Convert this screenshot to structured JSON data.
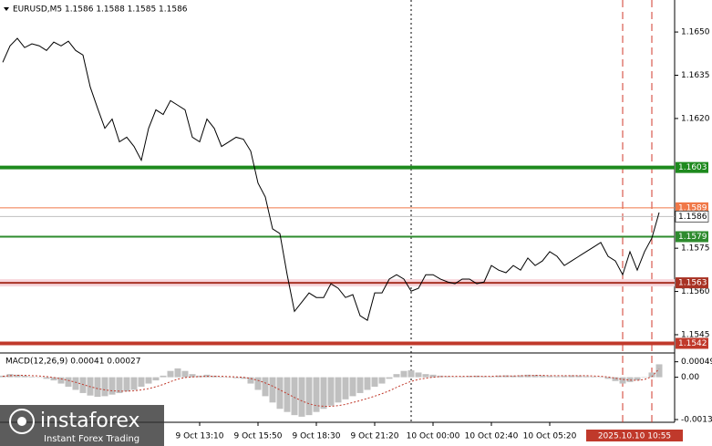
{
  "chart_data": [
    {
      "type": "line",
      "title": "EURUSD,M5 1.1586 1.1588 1.1585 1.1586",
      "color": "#000000",
      "categories": [
        null,
        null,
        null,
        null,
        null,
        null,
        null,
        null,
        null,
        null,
        null,
        null,
        null,
        null,
        null,
        null,
        null,
        null,
        null,
        null,
        null,
        null,
        null,
        null,
        null,
        null,
        null,
        "9 Oct 13:10",
        null,
        null,
        null,
        null,
        null,
        null,
        null,
        "9 Oct 15:50",
        null,
        null,
        null,
        null,
        null,
        null,
        null,
        "9 Oct 18:30",
        null,
        null,
        null,
        null,
        null,
        null,
        null,
        "9 Oct 21:20",
        null,
        null,
        null,
        null,
        null,
        null,
        null,
        "10 Oct 00:00",
        null,
        null,
        null,
        null,
        null,
        null,
        null,
        "10 Oct 02:40",
        null,
        null,
        null,
        null,
        null,
        null,
        null,
        "10 Oct 05:20",
        null,
        null,
        null,
        null,
        null,
        null,
        null,
        null,
        null,
        "2025.10.10 10:55",
        null,
        null,
        null,
        null,
        null
      ],
      "values": [
        1.16395,
        1.16452,
        1.16478,
        1.16446,
        1.16459,
        1.16452,
        1.16436,
        1.16465,
        1.16452,
        1.16468,
        1.16436,
        1.1642,
        1.16309,
        1.16236,
        1.16166,
        1.16198,
        1.16119,
        1.16135,
        1.16103,
        1.16055,
        1.16166,
        1.1623,
        1.16214,
        1.16262,
        1.16246,
        1.1623,
        1.16135,
        1.16119,
        1.16198,
        1.16166,
        1.16103,
        1.16119,
        1.16135,
        1.16128,
        1.16087,
        1.15976,
        1.15928,
        1.15817,
        1.15801,
        1.15658,
        1.15531,
        1.15563,
        1.15595,
        1.15579,
        1.15579,
        1.15627,
        1.15611,
        1.15579,
        1.15589,
        1.15516,
        1.155,
        1.15595,
        1.15595,
        1.15643,
        1.15658,
        1.15643,
        1.15601,
        1.15611,
        1.15658,
        1.15658,
        1.15643,
        1.15633,
        1.15627,
        1.15643,
        1.15643,
        1.15627,
        1.15633,
        1.1569,
        1.15674,
        1.15665,
        1.1569,
        1.15674,
        1.15716,
        1.1569,
        1.15706,
        1.15738,
        1.15722,
        1.1569,
        1.15706,
        1.15722,
        1.15738,
        1.15754,
        1.1577,
        1.15722,
        1.15706,
        1.15658,
        1.15738,
        1.15674,
        1.15738,
        1.15785,
        1.15874
      ],
      "ylim": [
        1.15393,
        1.16611
      ],
      "yticks": [
        {
          "value": 1.165,
          "label": "1.1650"
        },
        1.1635,
        {
          "value": 1.162,
          "label": "1.1620"
        },
        1.1575,
        {
          "value": 1.156,
          "label": "1.1560"
        },
        1.1545
      ],
      "levels": [
        {
          "value": 1.1603,
          "color": "#1e8a1e",
          "width": 4
        },
        {
          "value": 1.1589,
          "color": "#f07848",
          "width": 1
        },
        {
          "value": 1.1586,
          "color": "#c0c0c0",
          "width": 1
        },
        {
          "value": 1.1579,
          "color": "#2e8b2e",
          "width": 2
        },
        {
          "value": 1.1563,
          "color": "#a83224",
          "width": 2
        },
        {
          "value": 1.1542,
          "color": "#c0392b",
          "width": 4
        }
      ],
      "highlight_category": 85,
      "vlines": [
        85,
        89
      ],
      "separator": 56
    },
    {
      "type": "bar",
      "title": "MACD(12,26,9) 0.00041 0.00027",
      "color": "#c0c0c0",
      "values": [
        5e-05,
        0.0001,
        8e-05,
        5e-05,
        2e-05,
        0,
        -5e-05,
        -0.0001,
        -0.0002,
        -0.0003,
        -0.0004,
        -0.0005,
        -0.00058,
        -0.00062,
        -0.0006,
        -0.00055,
        -0.0005,
        -0.00045,
        -0.0004,
        -0.0003,
        -0.0002,
        -0.0001,
        5e-05,
        0.0002,
        0.00028,
        0.0002,
        0.0001,
        5e-05,
        8e-05,
        5e-05,
        2e-05,
        0,
        -3e-05,
        -5e-05,
        -0.0002,
        -0.0004,
        -0.0006,
        -0.0008,
        -0.001,
        -0.0011,
        -0.0012,
        -0.00125,
        -0.0012,
        -0.0011,
        -0.001,
        -0.0009,
        -0.0008,
        -0.0007,
        -0.0006,
        -0.0005,
        -0.0004,
        -0.0003,
        -0.0002,
        -5e-05,
        0.0001,
        0.0002,
        0.00022,
        0.00015,
        0.0001,
        8e-05,
        5e-05,
        3e-05,
        0,
        2e-05,
        4e-05,
        5e-05,
        3e-05,
        2e-05,
        5e-05,
        6e-05,
        5e-05,
        6e-05,
        8e-05,
        7e-05,
        5e-05,
        4e-05,
        3e-05,
        4e-05,
        6e-05,
        5e-05,
        3e-05,
        2e-05,
        0,
        -5e-05,
        -0.00012,
        -0.0002,
        -0.00015,
        -0.0001,
        0,
        0.00015,
        0.00041
      ],
      "signal": {
        "color": "#c0392b",
        "values": [
          3e-05,
          5e-05,
          6e-05,
          6e-05,
          5e-05,
          4e-05,
          2e-05,
          -1e-05,
          -5e-05,
          -0.0001,
          -0.00016,
          -0.00023,
          -0.0003,
          -0.00036,
          -0.0004,
          -0.00043,
          -0.00044,
          -0.00044,
          -0.00043,
          -0.0004,
          -0.00036,
          -0.0003,
          -0.00023,
          -0.00014,
          -6e-05,
          -1e-05,
          1e-05,
          2e-05,
          3e-05,
          3e-05,
          3e-05,
          2e-05,
          1e-05,
          0,
          -4e-05,
          -0.0001,
          -0.00018,
          -0.00028,
          -0.0004,
          -0.00052,
          -0.00064,
          -0.00075,
          -0.00084,
          -0.0009,
          -0.00092,
          -0.00092,
          -0.0009,
          -0.00086,
          -0.0008,
          -0.00074,
          -0.00067,
          -0.0006,
          -0.00052,
          -0.00043,
          -0.00032,
          -0.00022,
          -0.00013,
          -7e-05,
          -3e-05,
          0,
          2e-05,
          3e-05,
          3e-05,
          3e-05,
          3e-05,
          3e-05,
          3e-05,
          3e-05,
          4e-05,
          4e-05,
          4e-05,
          5e-05,
          5e-05,
          6e-05,
          6e-05,
          5e-05,
          5e-05,
          5e-05,
          5e-05,
          5e-05,
          5e-05,
          4e-05,
          3e-05,
          1e-05,
          -3e-05,
          -7e-05,
          -9e-05,
          -0.0001,
          -7e-05,
          2e-05,
          0.00027
        ]
      },
      "ylim": [
        -0.00134,
        0.00074
      ],
      "yticks": [
        0.00049,
        {
          "value": 0,
          "label": "0.00"
        },
        -0.00134
      ]
    }
  ],
  "watermark": {
    "brand": "instaforex",
    "tagline": "Instant Forex Trading"
  }
}
